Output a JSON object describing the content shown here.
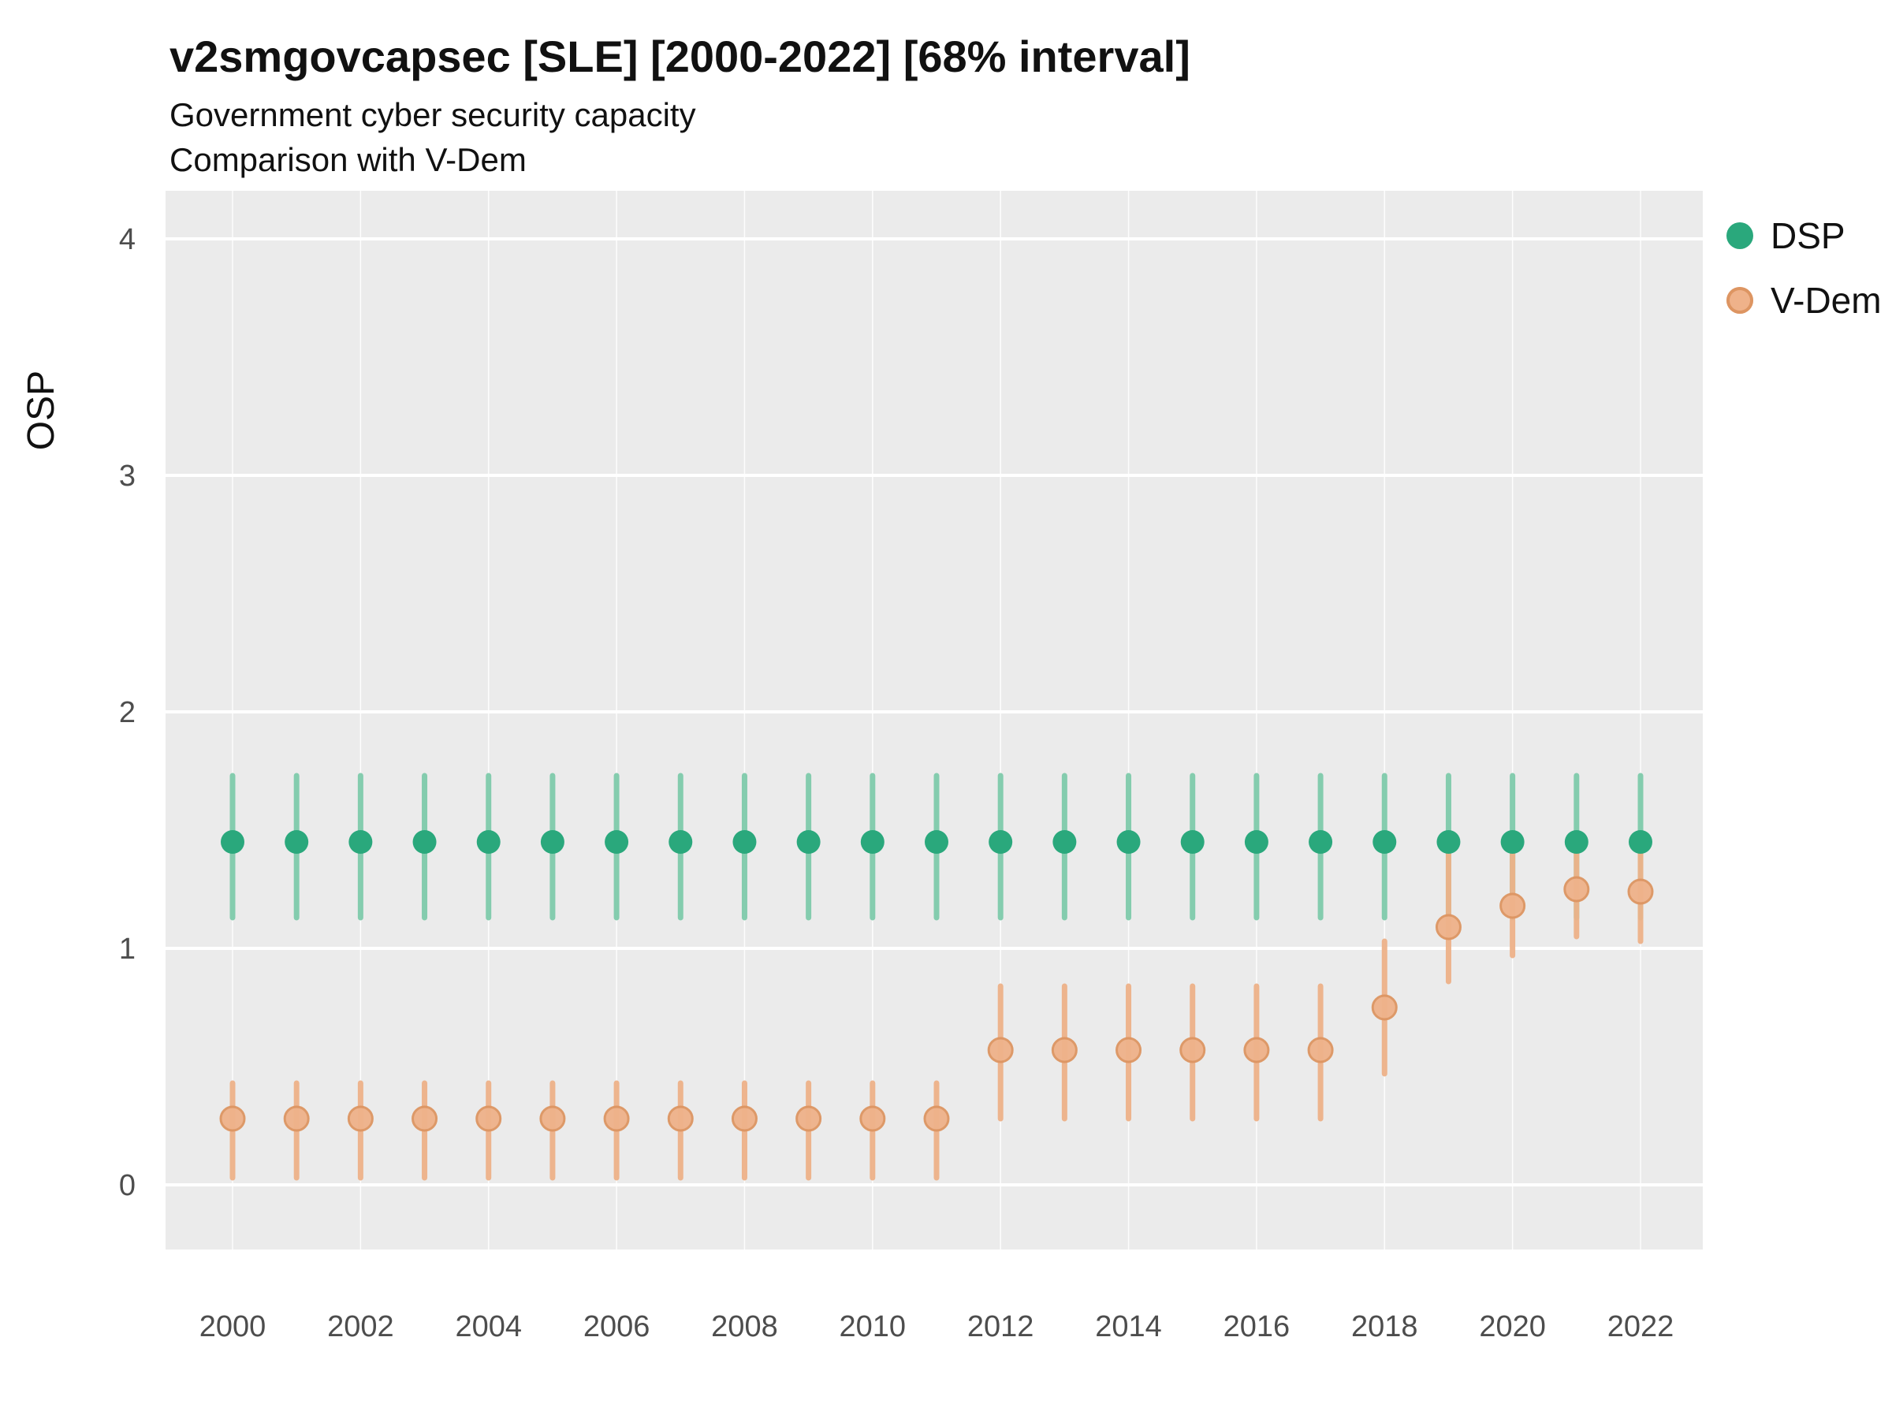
{
  "header": {
    "title": "v2smgovcapsec [SLE] [2000-2022] [68% interval]",
    "subtitle1": "Government cyber security capacity",
    "subtitle2": "Comparison with V-Dem"
  },
  "colors": {
    "panel_bg": "#ebebeb",
    "grid": "#ffffff",
    "dsp_point": "#2aa87c",
    "dsp_bar": "#7fcbab",
    "vdem_point": "#efb28a",
    "vdem_point_stroke": "#dd9562",
    "vdem_bar": "#eeb留289",
    "vdem_bar_fixed": "#eeb289",
    "tick_text": "#4d4d4d"
  },
  "legend": [
    {
      "name": "DSP",
      "color": "#2aa87c"
    },
    {
      "name": "V-Dem",
      "color": "#efb28a"
    }
  ],
  "axes": {
    "y_label": "OSP",
    "y_ticks": [
      0,
      1,
      2,
      3,
      4
    ],
    "x_ticks": [
      2000,
      2002,
      2004,
      2006,
      2008,
      2010,
      2012,
      2014,
      2016,
      2018,
      2020,
      2022
    ]
  },
  "chart_data": {
    "type": "scatter",
    "title": "v2smgovcapsec [SLE] [2000-2022] [68% interval]",
    "subtitle": "Government cyber security capacity — Comparison with V-Dem",
    "xlabel": "",
    "ylabel": "OSP",
    "ylim": [
      -0.27,
      4.27
    ],
    "legend_position": "right",
    "grid": true,
    "x": [
      2000,
      2001,
      2002,
      2003,
      2004,
      2005,
      2006,
      2007,
      2008,
      2009,
      2010,
      2011,
      2012,
      2013,
      2014,
      2015,
      2016,
      2017,
      2018,
      2019,
      2020,
      2021,
      2022
    ],
    "series": [
      {
        "name": "DSP",
        "values": [
          1.45,
          1.45,
          1.45,
          1.45,
          1.45,
          1.45,
          1.45,
          1.45,
          1.45,
          1.45,
          1.45,
          1.45,
          1.45,
          1.45,
          1.45,
          1.45,
          1.45,
          1.45,
          1.45,
          1.45,
          1.45,
          1.45,
          1.45
        ],
        "lower": [
          1.13,
          1.13,
          1.13,
          1.13,
          1.13,
          1.13,
          1.13,
          1.13,
          1.13,
          1.13,
          1.13,
          1.13,
          1.13,
          1.13,
          1.13,
          1.13,
          1.13,
          1.13,
          1.13,
          1.13,
          1.13,
          1.13,
          1.13
        ],
        "upper": [
          1.73,
          1.73,
          1.73,
          1.73,
          1.73,
          1.73,
          1.73,
          1.73,
          1.73,
          1.73,
          1.73,
          1.73,
          1.73,
          1.73,
          1.73,
          1.73,
          1.73,
          1.73,
          1.73,
          1.73,
          1.73,
          1.73,
          1.73
        ]
      },
      {
        "name": "V-Dem",
        "values": [
          0.28,
          0.28,
          0.28,
          0.28,
          0.28,
          0.28,
          0.28,
          0.28,
          0.28,
          0.28,
          0.28,
          0.28,
          0.57,
          0.57,
          0.57,
          0.57,
          0.57,
          0.57,
          0.75,
          1.09,
          1.18,
          1.25,
          1.24
        ],
        "lower": [
          0.03,
          0.03,
          0.03,
          0.03,
          0.03,
          0.03,
          0.03,
          0.03,
          0.03,
          0.03,
          0.03,
          0.03,
          0.28,
          0.28,
          0.28,
          0.28,
          0.28,
          0.28,
          0.47,
          0.86,
          0.97,
          1.05,
          1.03
        ],
        "upper": [
          0.43,
          0.43,
          0.43,
          0.43,
          0.43,
          0.43,
          0.43,
          0.43,
          0.43,
          0.43,
          0.43,
          0.43,
          0.84,
          0.84,
          0.84,
          0.84,
          0.84,
          0.84,
          1.03,
          1.45,
          1.45,
          1.46,
          1.44
        ]
      }
    ]
  },
  "layout_note": "68% credible intervals drawn as vertical bars behind points"
}
